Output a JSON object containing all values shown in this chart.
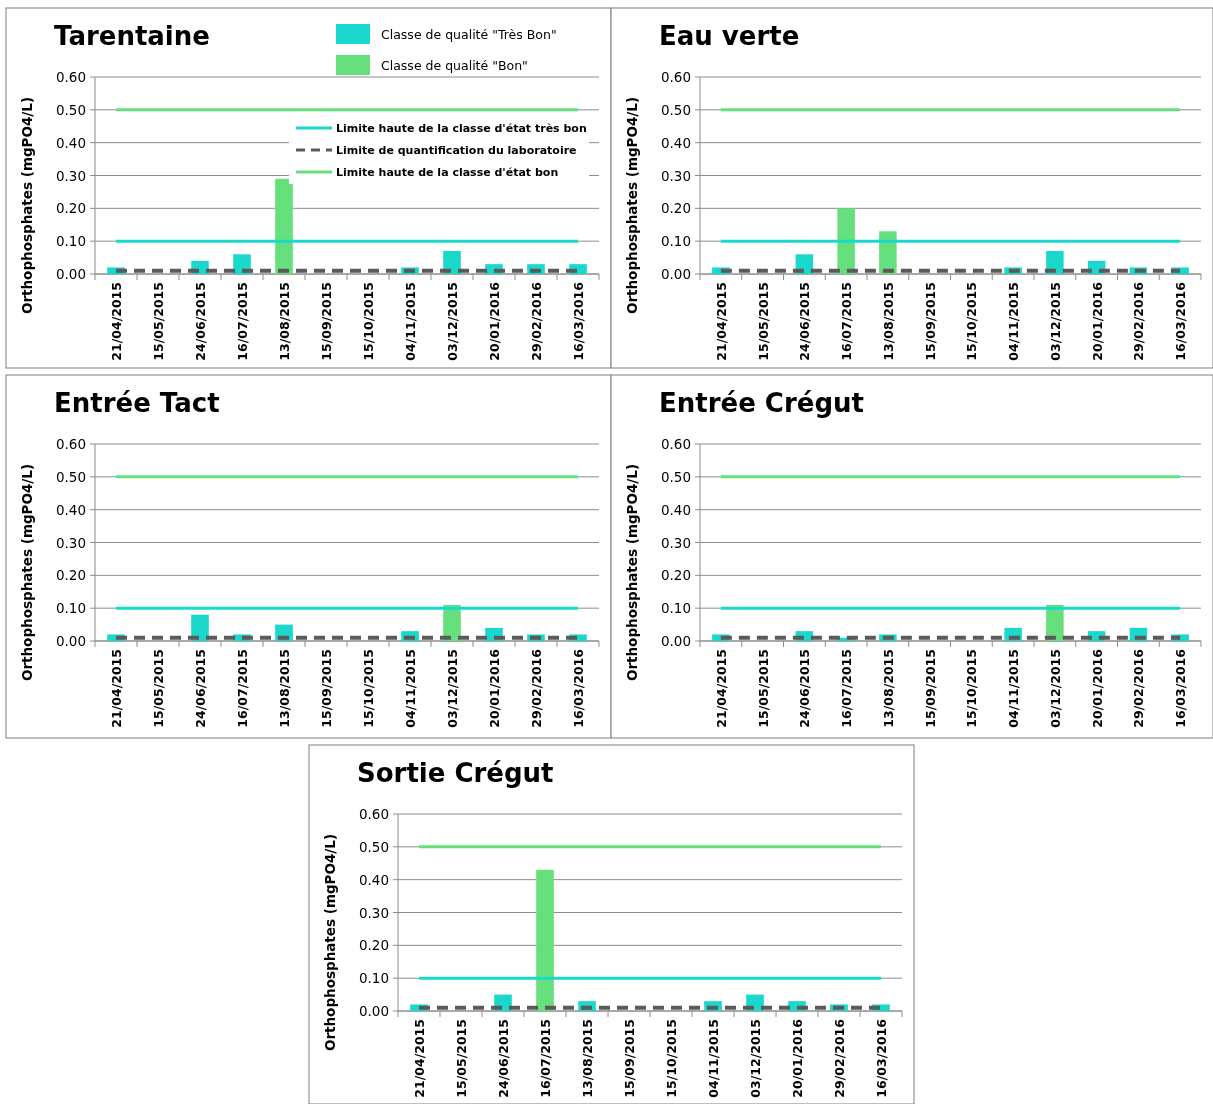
{
  "chart_data": [
    {
      "type": "bar",
      "title": "Tarentaine",
      "ylabel": "Orthophosphates (mgPO4/L)",
      "categories": [
        "21/04/2015",
        "15/05/2015",
        "24/06/2015",
        "16/07/2015",
        "13/08/2015",
        "15/09/2015",
        "15/10/2015",
        "04/11/2015",
        "03/12/2015",
        "20/01/2016",
        "29/02/2016",
        "16/03/2016"
      ],
      "ylim": [
        0,
        0.6
      ],
      "yticks": [
        {
          "value": 0,
          "label": "0.00"
        },
        {
          "value": 0.1,
          "label": "0.10"
        },
        {
          "value": 0.2,
          "label": "0.20"
        },
        {
          "value": 0.3,
          "label": "0.30"
        },
        {
          "value": 0.4,
          "label": "0.40"
        },
        {
          "value": 0.5,
          "label": "0.50"
        },
        {
          "value": 0.6,
          "label": "0.60"
        }
      ],
      "grid": "y",
      "legend": "top right",
      "marker": "none",
      "series": [
        {
          "name": "Classe de qualité \"Très Bon\"",
          "color": "#1ad9cc",
          "values": [
            0.02,
            null,
            0.04,
            0.06,
            null,
            null,
            null,
            0.02,
            0.07,
            0.03,
            0.03,
            0.03
          ]
        },
        {
          "name": "Classe de qualité \"Bon\"",
          "color": "#66e07c",
          "values": [
            null,
            null,
            null,
            null,
            0.29,
            null,
            null,
            null,
            null,
            null,
            null,
            null
          ]
        },
        {
          "type": "line",
          "name": "Limite haute de la classe d'état très bon",
          "color": "#1ad9cc",
          "line_style": "solid",
          "values": [
            0.1,
            0.1,
            0.1,
            0.1,
            0.1,
            0.1,
            0.1,
            0.1,
            0.1,
            0.1,
            0.1,
            0.1
          ]
        },
        {
          "type": "line",
          "name": "Limite de quantification du laboratoire",
          "color": "#5a5a5a",
          "line_style": "dashed",
          "values": [
            0.01,
            0.01,
            0.01,
            0.01,
            0.01,
            0.01,
            0.01,
            0.01,
            0.01,
            0.01,
            0.01,
            0.01
          ]
        },
        {
          "type": "line",
          "name": "Limite haute de la classe d'état bon",
          "color": "#66e07c",
          "line_style": "solid",
          "values": [
            0.5,
            0.5,
            0.5,
            0.5,
            0.5,
            0.5,
            0.5,
            0.5,
            0.5,
            0.5,
            0.5,
            0.5
          ]
        }
      ]
    },
    {
      "type": "bar",
      "title": "Eau verte",
      "ylabel": "Orthophosphates (mgPO4/L)",
      "categories": [
        "21/04/2015",
        "15/05/2015",
        "24/06/2015",
        "16/07/2015",
        "13/08/2015",
        "15/09/2015",
        "15/10/2015",
        "04/11/2015",
        "03/12/2015",
        "20/01/2016",
        "29/02/2016",
        "16/03/2016"
      ],
      "ylim": [
        0,
        0.6
      ],
      "yticks": [
        {
          "value": 0,
          "label": "0.00"
        },
        {
          "value": 0.1,
          "label": "0.10"
        },
        {
          "value": 0.2,
          "label": "0.20"
        },
        {
          "value": 0.3,
          "label": "0.30"
        },
        {
          "value": 0.4,
          "label": "0.40"
        },
        {
          "value": 0.5,
          "label": "0.50"
        },
        {
          "value": 0.6,
          "label": "0.60"
        }
      ],
      "grid": "y",
      "marker": "none",
      "series": [
        {
          "color": "#1ad9cc",
          "values": [
            0.02,
            null,
            0.06,
            null,
            null,
            null,
            null,
            0.02,
            0.07,
            0.04,
            0.02,
            0.02
          ]
        },
        {
          "color": "#66e07c",
          "values": [
            null,
            null,
            null,
            0.2,
            0.13,
            null,
            null,
            null,
            null,
            null,
            null,
            null
          ]
        },
        {
          "type": "line",
          "color": "#1ad9cc",
          "line_style": "solid",
          "values": [
            0.1,
            0.1,
            0.1,
            0.1,
            0.1,
            0.1,
            0.1,
            0.1,
            0.1,
            0.1,
            0.1,
            0.1
          ]
        },
        {
          "type": "line",
          "color": "#5a5a5a",
          "line_style": "dashed",
          "values": [
            0.01,
            0.01,
            0.01,
            0.01,
            0.01,
            0.01,
            0.01,
            0.01,
            0.01,
            0.01,
            0.01,
            0.01
          ]
        },
        {
          "type": "line",
          "color": "#66e07c",
          "line_style": "solid",
          "values": [
            0.5,
            0.5,
            0.5,
            0.5,
            0.5,
            0.5,
            0.5,
            0.5,
            0.5,
            0.5,
            0.5,
            0.5
          ]
        }
      ]
    },
    {
      "type": "bar",
      "title": "Entrée Tact",
      "ylabel": "Orthophosphates (mgPO4/L)",
      "categories": [
        "21/04/2015",
        "15/05/2015",
        "24/06/2015",
        "16/07/2015",
        "13/08/2015",
        "15/09/2015",
        "15/10/2015",
        "04/11/2015",
        "03/12/2015",
        "20/01/2016",
        "29/02/2016",
        "16/03/2016"
      ],
      "ylim": [
        0,
        0.6
      ],
      "yticks": [
        {
          "value": 0,
          "label": "0.00"
        },
        {
          "value": 0.1,
          "label": "0.10"
        },
        {
          "value": 0.2,
          "label": "0.20"
        },
        {
          "value": 0.3,
          "label": "0.30"
        },
        {
          "value": 0.4,
          "label": "0.40"
        },
        {
          "value": 0.5,
          "label": "0.50"
        },
        {
          "value": 0.6,
          "label": "0.60"
        }
      ],
      "grid": "y",
      "marker": "none",
      "series": [
        {
          "color": "#1ad9cc",
          "values": [
            0.02,
            null,
            0.08,
            0.02,
            0.05,
            null,
            null,
            0.03,
            null,
            0.04,
            0.02,
            0.02
          ]
        },
        {
          "color": "#66e07c",
          "values": [
            null,
            null,
            null,
            null,
            null,
            null,
            null,
            null,
            0.11,
            null,
            null,
            null
          ]
        },
        {
          "type": "line",
          "color": "#1ad9cc",
          "line_style": "solid",
          "values": [
            0.1,
            0.1,
            0.1,
            0.1,
            0.1,
            0.1,
            0.1,
            0.1,
            0.1,
            0.1,
            0.1,
            0.1
          ]
        },
        {
          "type": "line",
          "color": "#5a5a5a",
          "line_style": "dashed",
          "values": [
            0.01,
            0.01,
            0.01,
            0.01,
            0.01,
            0.01,
            0.01,
            0.01,
            0.01,
            0.01,
            0.01,
            0.01
          ]
        },
        {
          "type": "line",
          "color": "#66e07c",
          "line_style": "solid",
          "values": [
            0.5,
            0.5,
            0.5,
            0.5,
            0.5,
            0.5,
            0.5,
            0.5,
            0.5,
            0.5,
            0.5,
            0.5
          ]
        }
      ]
    },
    {
      "type": "bar",
      "title": "Entrée Crégut",
      "ylabel": "Orthophosphates (mgPO4/L)",
      "categories": [
        "21/04/2015",
        "15/05/2015",
        "24/06/2015",
        "16/07/2015",
        "13/08/2015",
        "15/09/2015",
        "15/10/2015",
        "04/11/2015",
        "03/12/2015",
        "20/01/2016",
        "29/02/2016",
        "16/03/2016"
      ],
      "ylim": [
        0,
        0.6
      ],
      "yticks": [
        {
          "value": 0,
          "label": "0.00"
        },
        {
          "value": 0.1,
          "label": "0.10"
        },
        {
          "value": 0.2,
          "label": "0.20"
        },
        {
          "value": 0.3,
          "label": "0.30"
        },
        {
          "value": 0.4,
          "label": "0.40"
        },
        {
          "value": 0.5,
          "label": "0.50"
        },
        {
          "value": 0.6,
          "label": "0.60"
        }
      ],
      "grid": "y",
      "marker": "none",
      "series": [
        {
          "color": "#1ad9cc",
          "values": [
            0.02,
            null,
            0.03,
            0.01,
            0.02,
            null,
            null,
            0.04,
            null,
            0.03,
            0.04,
            0.02
          ]
        },
        {
          "color": "#66e07c",
          "values": [
            null,
            null,
            null,
            null,
            null,
            null,
            null,
            null,
            0.11,
            null,
            null,
            null
          ]
        },
        {
          "type": "line",
          "color": "#1ad9cc",
          "line_style": "solid",
          "values": [
            0.1,
            0.1,
            0.1,
            0.1,
            0.1,
            0.1,
            0.1,
            0.1,
            0.1,
            0.1,
            0.1,
            0.1
          ]
        },
        {
          "type": "line",
          "color": "#5a5a5a",
          "line_style": "dashed",
          "values": [
            0.01,
            0.01,
            0.01,
            0.01,
            0.01,
            0.01,
            0.01,
            0.01,
            0.01,
            0.01,
            0.01,
            0.01
          ]
        },
        {
          "type": "line",
          "color": "#66e07c",
          "line_style": "solid",
          "values": [
            0.5,
            0.5,
            0.5,
            0.5,
            0.5,
            0.5,
            0.5,
            0.5,
            0.5,
            0.5,
            0.5,
            0.5
          ]
        }
      ]
    },
    {
      "type": "bar",
      "title": "Sortie Crégut",
      "ylabel": "Orthophosphates (mgPO4/L)",
      "categories": [
        "21/04/2015",
        "15/05/2015",
        "24/06/2015",
        "16/07/2015",
        "13/08/2015",
        "15/09/2015",
        "15/10/2015",
        "04/11/2015",
        "03/12/2015",
        "20/01/2016",
        "29/02/2016",
        "16/03/2016"
      ],
      "ylim": [
        0,
        0.6
      ],
      "yticks": [
        {
          "value": 0,
          "label": "0.00"
        },
        {
          "value": 0.1,
          "label": "0.10"
        },
        {
          "value": 0.2,
          "label": "0.20"
        },
        {
          "value": 0.3,
          "label": "0.30"
        },
        {
          "value": 0.4,
          "label": "0.40"
        },
        {
          "value": 0.5,
          "label": "0.50"
        },
        {
          "value": 0.6,
          "label": "0.60"
        }
      ],
      "grid": "y",
      "marker": "none",
      "series": [
        {
          "color": "#1ad9cc",
          "values": [
            0.02,
            null,
            0.05,
            null,
            0.03,
            null,
            null,
            0.03,
            0.05,
            0.03,
            0.02,
            0.02
          ]
        },
        {
          "color": "#66e07c",
          "values": [
            null,
            null,
            null,
            0.43,
            null,
            null,
            null,
            null,
            null,
            null,
            null,
            null
          ]
        },
        {
          "type": "line",
          "color": "#1ad9cc",
          "line_style": "solid",
          "values": [
            0.1,
            0.1,
            0.1,
            0.1,
            0.1,
            0.1,
            0.1,
            0.1,
            0.1,
            0.1,
            0.1,
            0.1
          ]
        },
        {
          "type": "line",
          "color": "#5a5a5a",
          "line_style": "dashed",
          "values": [
            0.01,
            0.01,
            0.01,
            0.01,
            0.01,
            0.01,
            0.01,
            0.01,
            0.01,
            0.01,
            0.01,
            0.01
          ]
        },
        {
          "type": "line",
          "color": "#66e07c",
          "line_style": "solid",
          "values": [
            0.5,
            0.5,
            0.5,
            0.5,
            0.5,
            0.5,
            0.5,
            0.5,
            0.5,
            0.5,
            0.5,
            0.5
          ]
        }
      ]
    }
  ]
}
